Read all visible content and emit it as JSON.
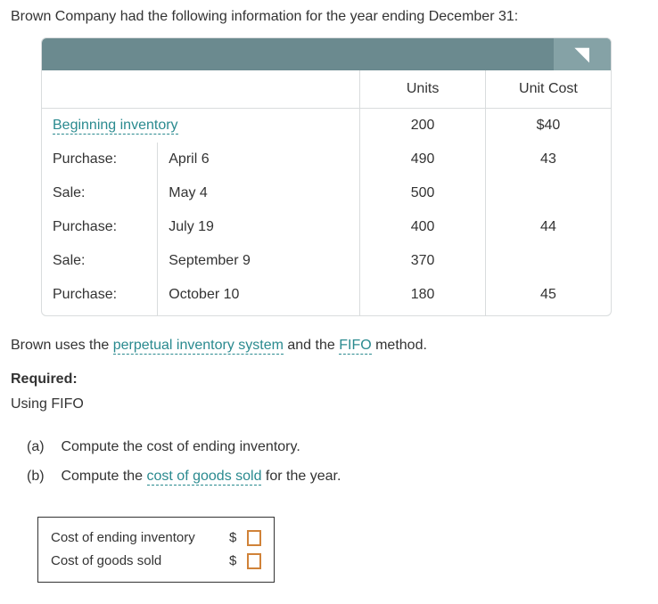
{
  "intro": "Brown Company had the following information for the year ending December 31:",
  "corner_glyph": "◥",
  "table": {
    "headers": {
      "blank": "",
      "units": "Units",
      "unit_cost": "Unit Cost"
    },
    "rows": [
      {
        "type_link": "Beginning inventory",
        "type_plain": "",
        "date": "",
        "units": "200",
        "cost": "$40"
      },
      {
        "type_link": "",
        "type_plain": "Purchase:",
        "date": "April 6",
        "units": "490",
        "cost": "43"
      },
      {
        "type_link": "",
        "type_plain": "Sale:",
        "date": "May 4",
        "units": "500",
        "cost": ""
      },
      {
        "type_link": "",
        "type_plain": "Purchase:",
        "date": "July 19",
        "units": "400",
        "cost": "44"
      },
      {
        "type_link": "",
        "type_plain": "Sale:",
        "date": "September 9",
        "units": "370",
        "cost": ""
      },
      {
        "type_link": "",
        "type_plain": "Purchase:",
        "date": "October 10",
        "units": "180",
        "cost": "45"
      }
    ]
  },
  "sentence": {
    "pre": "Brown uses the ",
    "link1": "perpetual inventory system",
    "mid": " and the ",
    "link2": "FIFO",
    "post": " method."
  },
  "required_label": "Required:",
  "using": "Using FIFO",
  "questions": {
    "a_marker": "(a)",
    "a_text": "Compute the cost of ending inventory.",
    "b_marker": "(b)",
    "b_pre": "Compute the ",
    "b_link": "cost of goods sold",
    "b_post": " for the year."
  },
  "answers": {
    "ending_label": "Cost of ending inventory",
    "cogs_label": "Cost of goods sold",
    "currency": "$",
    "ending_value": "",
    "cogs_value": ""
  },
  "colors": {
    "link": "#2a8a8f",
    "header_bar": "#6b8a8f",
    "header_corner": "#85a2a6",
    "border": "#d9dcdd",
    "input_border": "#d08238"
  }
}
